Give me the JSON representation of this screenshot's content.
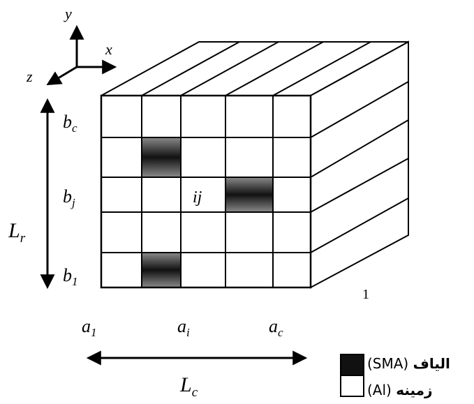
{
  "axes": {
    "x": "x",
    "y": "y",
    "z": "z"
  },
  "row_labels": [
    {
      "base": "b",
      "sub": "c"
    },
    {
      "base": "b",
      "sub": "j"
    },
    {
      "base": "b",
      "sub": "1"
    }
  ],
  "col_labels": [
    {
      "base": "a",
      "sub": "1"
    },
    {
      "base": "a",
      "sub": "i"
    },
    {
      "base": "a",
      "sub": "c"
    }
  ],
  "dims": {
    "rows": {
      "base": "L",
      "sub": "r"
    },
    "cols": {
      "base": "L",
      "sub": "c"
    }
  },
  "cell_label": "ij",
  "depth_label": "1",
  "grid": {
    "rows": 5,
    "cols": 5,
    "fiber_cells": [
      {
        "row": 2,
        "col": 2
      },
      {
        "row": 3,
        "col": 4
      },
      {
        "row": 5,
        "col": 2
      }
    ]
  },
  "legend": {
    "fiber": {
      "arabic": "الیاف",
      "latin": "(SMA)"
    },
    "matrix": {
      "arabic": "زمینه",
      "latin": "(Al)"
    }
  },
  "colors": {
    "line": "#000000",
    "fiber_dark": "#1a1a1a",
    "fiber_mid": "#7a7a7a",
    "matrix": "#ffffff"
  }
}
